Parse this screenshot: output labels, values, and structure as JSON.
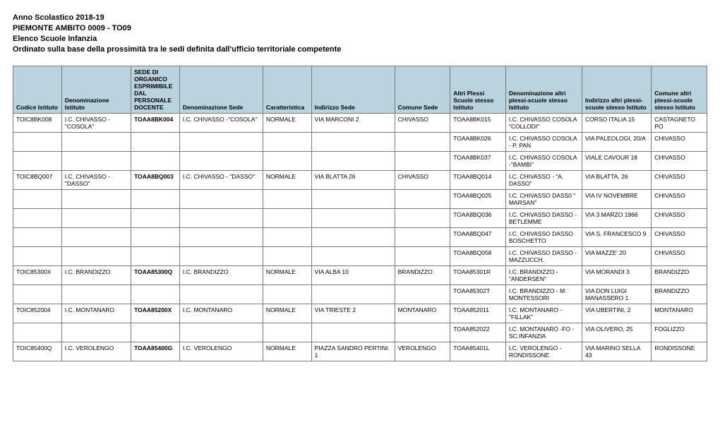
{
  "header": {
    "line1": "Anno Scolastico 2018-19",
    "line2": "PIEMONTE AMBITO 0009 - TO09",
    "line3": "Elenco Scuole Infanzia",
    "line4": "Ordinato sulla base della prossimità tra le sedi definita dall'ufficio territoriale competente"
  },
  "table": {
    "columns": [
      "Codice Istituto",
      "Denominazione Istituto",
      "SEDE DI ORGANICO ESPRIMIBILE DAL PERSONALE DOCENTE",
      "Denominazione Sede",
      "Caratteristica",
      "Indirizzo Sede",
      "Comune Sede",
      "Altri Plessi Scuole stesso Istituto",
      "Denominazione altri plessi-scuole stesso Istituto",
      "Indirizzo altri plessi-scuole stesso Istituto",
      "Comune altri plessi-scuole stesso Istituto"
    ],
    "rows": [
      [
        "TOIC8BK008",
        "I.C. CHIVASSO -\"COSOLA\"",
        "TOAA8BK004",
        "I.C. CHIVASSO -\"COSOLA\"",
        "NORMALE",
        "VIA MARCONI 2",
        "CHIVASSO",
        "TOAA8BK015",
        "I.C. CHIVASSO COSOLA \"COLLODI\"",
        "CORSO ITALIA 15",
        "CASTAGNETO PO"
      ],
      [
        "",
        "",
        "",
        "",
        "",
        "",
        "",
        "TOAA8BK026",
        "I.C. CHIVASSO COSOLA - P. PAN",
        "VIA PALEOLOGI, 20/A",
        "CHIVASSO"
      ],
      [
        "",
        "",
        "",
        "",
        "",
        "",
        "",
        "TOAA8BK037",
        "I.C. CHIVASSO COSOLA -\"BAMBI\"",
        "VIALE CAVOUR 18",
        "CHIVASSO"
      ],
      [
        "TOIC8BQ007",
        "I.C. CHIVASSO - \"DASSO\"",
        "TOAA8BQ003",
        "I.C. CHIVASSO - \"DASSO\"",
        "NORMALE",
        "VIA BLATTA 26",
        "CHIVASSO",
        "TOAA8BQ014",
        "I.C. CHIVASSO  - \"A. DASSO\"",
        "VIA BLATTA, 26",
        "CHIVASSO"
      ],
      [
        "",
        "",
        "",
        "",
        "",
        "",
        "",
        "TOAA8BQ025",
        "I.C. CHIVASSO DASS0 \" MARSAN\"",
        "VIA IV NOVEMBRE",
        "CHIVASSO"
      ],
      [
        "",
        "",
        "",
        "",
        "",
        "",
        "",
        "TOAA8BQ036",
        "I.C. CHIVASSO DASSO - BETLEMME",
        "VIA 3 MARZO 1966",
        "CHIVASSO"
      ],
      [
        "",
        "",
        "",
        "",
        "",
        "",
        "",
        "TOAA8BQ047",
        "I.C. CHIVASSO DASSO BOSCHETTO",
        "VIA S. FRANCESCO 9",
        "CHIVASSO"
      ],
      [
        "",
        "",
        "",
        "",
        "",
        "",
        "",
        "TOAA8BQ058",
        "I.C. CHIVASSO DASSO - MAZZUCCH.",
        "VIA MAZZE' 20",
        "CHIVASSO"
      ],
      [
        "TOIC85300X",
        "I.C. BRANDIZZO",
        "TOAA85300Q",
        "I.C. BRANDIZZO",
        "NORMALE",
        "VIA      ALBA           10",
        "BRANDIZZO",
        "TOAA85301R",
        "I.C. BRANDIZZO - \"ANDERSEN\"",
        "VIA MORANDI 3",
        "BRANDIZZO"
      ],
      [
        "",
        "",
        "",
        "",
        "",
        "",
        "",
        "TOAA85302T",
        "I.C. BRANDIZZO - M. MONTESSORI",
        "VIA DON LUIGI MANASSERO 1",
        "BRANDIZZO"
      ],
      [
        "TOIC852004",
        "I.C. MONTANARO",
        "TOAA85200X",
        "I.C. MONTANARO",
        "NORMALE",
        "VIA      TRIESTE       2",
        "MONTANARO",
        "TOAA852011",
        "I.C. MONTANARO - \"FILLAK\"",
        "VIA UBERTINI, 2",
        "MONTANARO"
      ],
      [
        "",
        "",
        "",
        "",
        "",
        "",
        "",
        "TOAA852022",
        "I.C. MONTANARO -FO -SC.INFANZIA",
        "VIA OLIVERO, 25",
        "FOGLIZZO"
      ],
      [
        "TOIC85400Q",
        "I.C. VEROLENGO",
        "TOAA85400G",
        "I.C. VEROLENGO",
        "NORMALE",
        "PIAZZA SANDRO PERTINI. 1",
        "VEROLENGO",
        "TOAA85401L",
        "I.C. VEROLENGO - RONDISSONE",
        "VIA MARINO SELLA 43",
        "RONDISSONE"
      ]
    ],
    "boldColumnIndex": 2,
    "headerBg": "#b9d4de",
    "borderColor": "#7a7a7a"
  }
}
